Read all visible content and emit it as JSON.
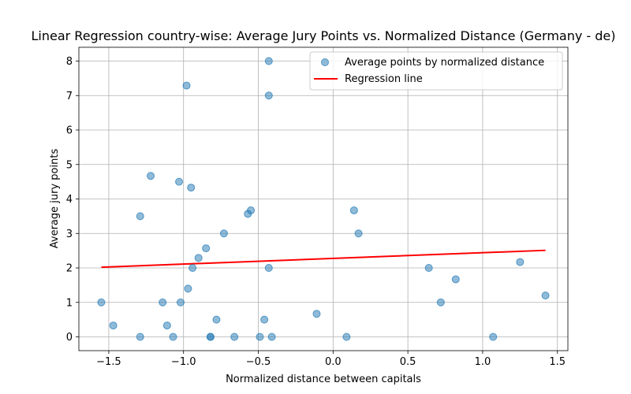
{
  "chart_data": {
    "type": "scatter",
    "title": "Linear Regression country-wise: Average Jury Points vs. Normalized Distance (Germany - de)",
    "xlabel": "Normalized distance between capitals",
    "ylabel": "Average jury points",
    "xlim": [
      -1.7,
      1.57
    ],
    "ylim": [
      -0.4,
      8.4
    ],
    "xticks": [
      -1.5,
      -1.0,
      -0.5,
      0.0,
      0.5,
      1.0,
      1.5
    ],
    "xtick_labels": [
      "−1.5",
      "−1.0",
      "−0.5",
      "0.0",
      "0.5",
      "1.0",
      "1.5"
    ],
    "yticks": [
      0,
      1,
      2,
      3,
      4,
      5,
      6,
      7,
      8
    ],
    "ytick_labels": [
      "0",
      "1",
      "2",
      "3",
      "4",
      "5",
      "6",
      "7",
      "8"
    ],
    "grid": true,
    "legend_position": "top-right",
    "series": [
      {
        "name": "Average points by normalized distance",
        "kind": "scatter",
        "color": "#1f77b4",
        "points": [
          [
            -1.55,
            1.0
          ],
          [
            -1.47,
            0.33
          ],
          [
            -1.29,
            3.5
          ],
          [
            -1.29,
            0.0
          ],
          [
            -1.22,
            4.67
          ],
          [
            -1.14,
            1.0
          ],
          [
            -1.11,
            0.33
          ],
          [
            -1.07,
            0.0
          ],
          [
            -1.03,
            4.5
          ],
          [
            -1.02,
            1.0
          ],
          [
            -0.98,
            7.29
          ],
          [
            -0.97,
            1.4
          ],
          [
            -0.95,
            4.33
          ],
          [
            -0.94,
            2.0
          ],
          [
            -0.9,
            2.29
          ],
          [
            -0.85,
            2.57
          ],
          [
            -0.82,
            0.0
          ],
          [
            -0.82,
            0.0
          ],
          [
            -0.78,
            0.5
          ],
          [
            -0.73,
            3.0
          ],
          [
            -0.66,
            0.0
          ],
          [
            -0.57,
            3.57
          ],
          [
            -0.55,
            3.67
          ],
          [
            -0.49,
            0.0
          ],
          [
            -0.46,
            0.5
          ],
          [
            -0.43,
            8.0
          ],
          [
            -0.43,
            7.0
          ],
          [
            -0.43,
            2.0
          ],
          [
            -0.41,
            0.0
          ],
          [
            -0.11,
            0.67
          ],
          [
            0.09,
            0.0
          ],
          [
            0.14,
            3.67
          ],
          [
            0.17,
            3.0
          ],
          [
            0.64,
            2.0
          ],
          [
            0.72,
            1.0
          ],
          [
            0.82,
            1.67
          ],
          [
            1.07,
            0.0
          ],
          [
            1.25,
            2.17
          ],
          [
            1.42,
            1.2
          ]
        ]
      },
      {
        "name": "Regression line",
        "kind": "line",
        "color": "#ff0000",
        "x": [
          -1.55,
          1.42
        ],
        "y": [
          2.02,
          2.51
        ]
      }
    ]
  }
}
